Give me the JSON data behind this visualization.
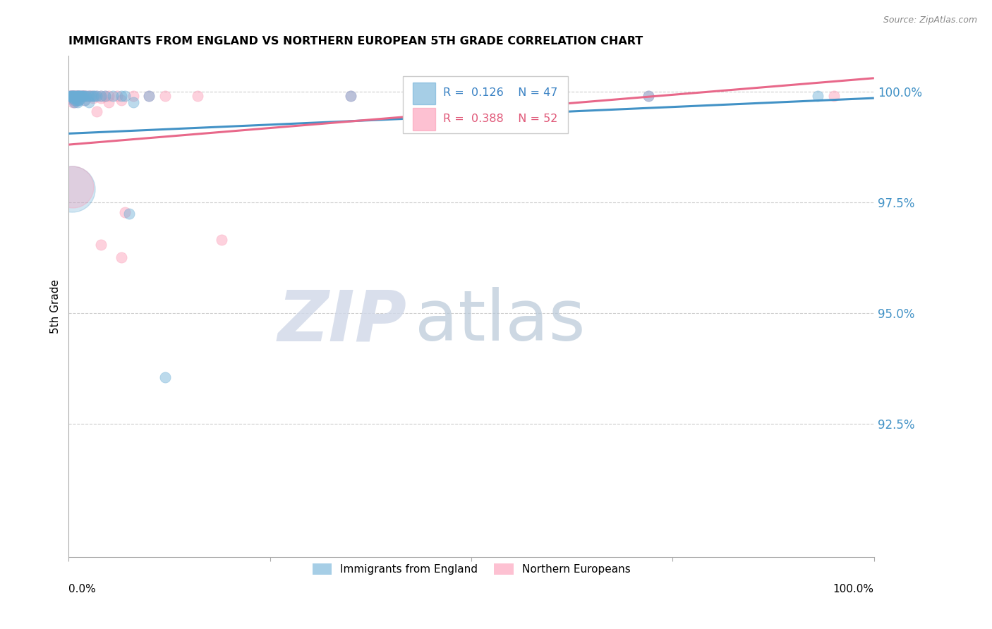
{
  "title": "IMMIGRANTS FROM ENGLAND VS NORTHERN EUROPEAN 5TH GRADE CORRELATION CHART",
  "source": "Source: ZipAtlas.com",
  "ylabel": "5th Grade",
  "ytick_labels": [
    "92.5%",
    "95.0%",
    "97.5%",
    "100.0%"
  ],
  "ytick_values": [
    0.925,
    0.95,
    0.975,
    1.0
  ],
  "xrange": [
    0.0,
    1.0
  ],
  "yrange": [
    0.895,
    1.008
  ],
  "legend_label_blue": "Immigrants from England",
  "legend_label_pink": "Northern Europeans",
  "r_blue": "0.126",
  "n_blue": "47",
  "r_pink": "0.388",
  "n_pink": "52",
  "blue_color": "#6baed6",
  "pink_color": "#fc99b4",
  "trendline_blue": "#4292c6",
  "trendline_pink": "#e8688a",
  "watermark_zip": "ZIP",
  "watermark_atlas": "atlas",
  "blue_trend_x0": 0.0,
  "blue_trend_y0": 0.9905,
  "blue_trend_x1": 1.0,
  "blue_trend_y1": 0.9985,
  "pink_trend_x0": 0.0,
  "pink_trend_y0": 0.988,
  "pink_trend_x1": 1.0,
  "pink_trend_y1": 1.003,
  "blue_x": [
    0.001,
    0.002,
    0.003,
    0.004,
    0.005,
    0.006,
    0.007,
    0.008,
    0.009,
    0.01,
    0.011,
    0.012,
    0.013,
    0.014,
    0.015,
    0.016,
    0.017,
    0.018,
    0.02,
    0.022,
    0.025,
    0.028,
    0.03,
    0.032,
    0.035,
    0.04,
    0.045,
    0.055,
    0.065,
    0.07,
    0.08,
    0.1,
    0.12,
    0.35,
    0.72,
    0.93,
    0.005,
    0.006,
    0.007,
    0.008,
    0.009,
    0.01,
    0.011,
    0.012,
    0.013,
    0.02,
    0.025
  ],
  "blue_y": [
    0.999,
    0.999,
    0.999,
    0.999,
    0.999,
    0.999,
    0.999,
    0.999,
    0.999,
    0.999,
    0.999,
    0.999,
    0.999,
    0.999,
    0.999,
    0.999,
    0.999,
    0.999,
    0.999,
    0.999,
    0.999,
    0.999,
    0.999,
    0.999,
    0.999,
    0.999,
    0.999,
    0.999,
    0.999,
    0.999,
    0.9975,
    0.999,
    0.9355,
    0.999,
    0.999,
    0.999,
    0.9985,
    0.9985,
    0.9975,
    0.998,
    0.9985,
    0.998,
    0.9975,
    0.998,
    0.998,
    0.998,
    0.9975
  ],
  "pink_x": [
    0.001,
    0.002,
    0.003,
    0.004,
    0.005,
    0.006,
    0.007,
    0.008,
    0.009,
    0.01,
    0.011,
    0.012,
    0.013,
    0.015,
    0.016,
    0.017,
    0.018,
    0.019,
    0.02,
    0.022,
    0.025,
    0.028,
    0.03,
    0.035,
    0.04,
    0.045,
    0.05,
    0.06,
    0.065,
    0.07,
    0.08,
    0.1,
    0.12,
    0.16,
    0.35,
    0.72,
    0.95,
    0.003,
    0.004,
    0.005,
    0.006,
    0.007,
    0.008,
    0.009,
    0.01,
    0.015,
    0.02,
    0.025,
    0.03,
    0.035,
    0.04,
    0.05
  ],
  "pink_y": [
    0.999,
    0.999,
    0.999,
    0.999,
    0.999,
    0.999,
    0.999,
    0.999,
    0.999,
    0.999,
    0.999,
    0.999,
    0.999,
    0.999,
    0.999,
    0.999,
    0.999,
    0.999,
    0.999,
    0.999,
    0.999,
    0.999,
    0.999,
    0.9955,
    0.999,
    0.999,
    0.999,
    0.999,
    0.998,
    0.9728,
    0.999,
    0.999,
    0.999,
    0.999,
    0.999,
    0.999,
    0.999,
    0.9985,
    0.9985,
    0.9975,
    0.998,
    0.998,
    0.9975,
    0.9985,
    0.998,
    0.9985,
    0.998,
    0.999,
    0.9985,
    0.999,
    0.9985,
    0.9975
  ],
  "blue_outlier_x": [
    0.075
  ],
  "blue_outlier_y": [
    0.9725
  ],
  "pink_outlier1_x": [
    0.065
  ],
  "pink_outlier1_y": [
    0.9625
  ],
  "pink_outlier2_x": [
    0.04
  ],
  "pink_outlier2_y": [
    0.9655
  ],
  "pink_outlier3_x": [
    0.19
  ],
  "pink_outlier3_y": [
    0.9665
  ],
  "blue_large_x": [
    0.004
  ],
  "blue_large_y": [
    0.978
  ],
  "pink_large_x": [
    0.005
  ],
  "pink_large_y": [
    0.9785
  ]
}
